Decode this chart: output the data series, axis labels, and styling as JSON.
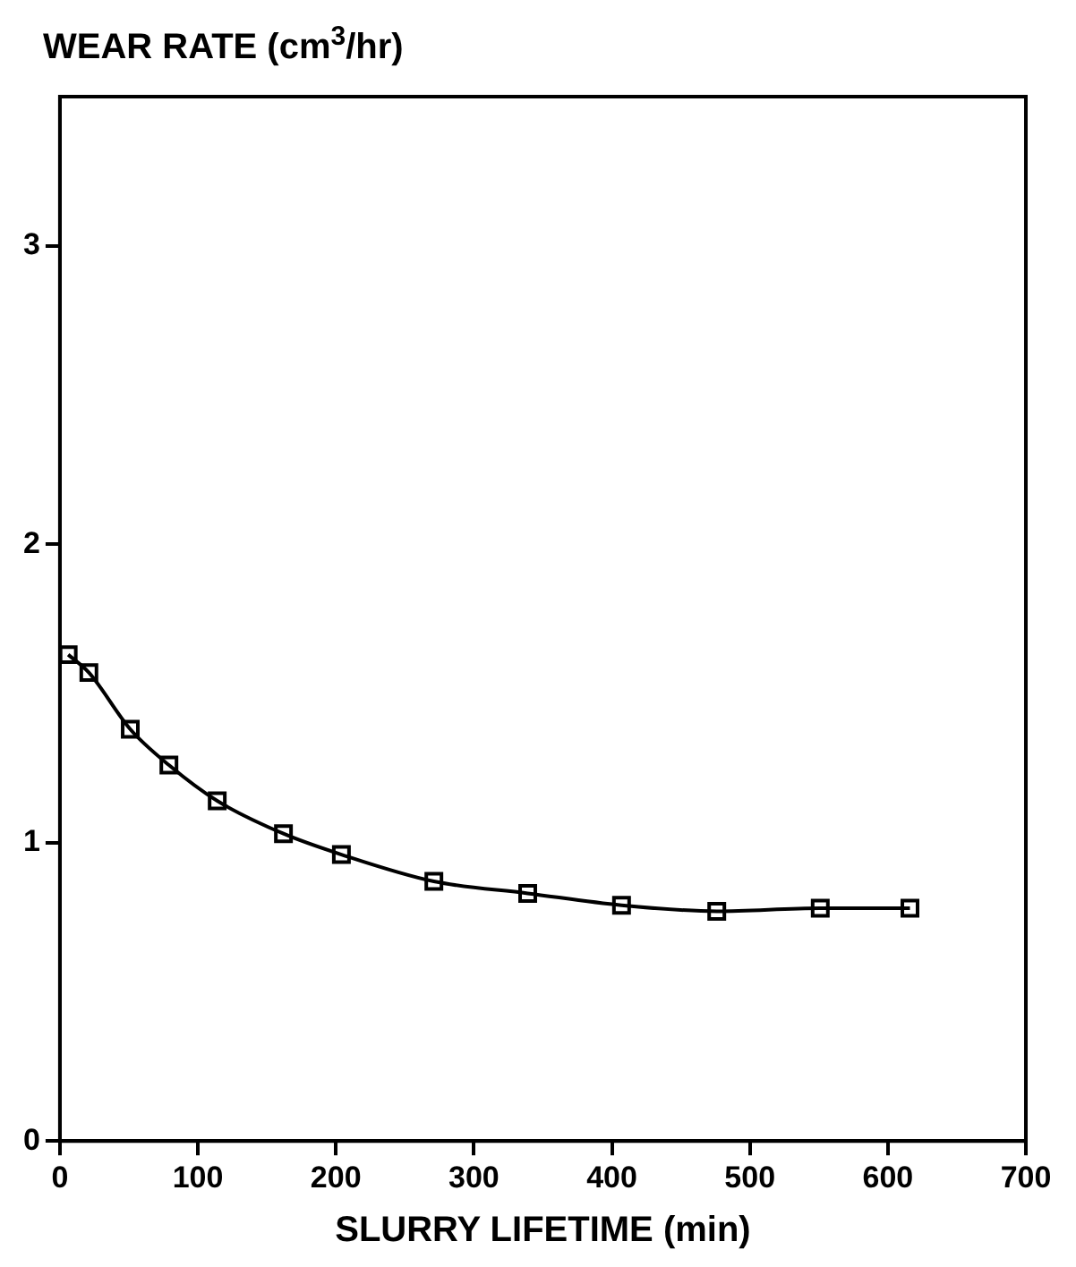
{
  "chart_data": {
    "type": "line",
    "ylabel": "WEAR RATE (cm$^{3}$/hr)",
    "xlabel": "SLURRY LIFETIME (min)",
    "x": [
      6,
      21,
      51,
      79,
      114,
      162,
      204,
      271,
      339,
      407,
      476,
      551,
      616
    ],
    "series": [
      {
        "color": "#000000",
        "values": [
          1.63,
          1.57,
          1.38,
          1.26,
          1.14,
          1.03,
          0.96,
          0.87,
          0.83,
          0.79,
          0.77,
          0.78,
          0.78
        ]
      }
    ],
    "xlim": [
      0,
      700
    ],
    "xticks": [
      0,
      100,
      200,
      300,
      400,
      500,
      600,
      700
    ],
    "ylim": [
      0,
      3.5
    ],
    "yticks": [
      0,
      1,
      2,
      3
    ],
    "grid": false,
    "legend": false,
    "marker": "square",
    "line_style": "solid"
  }
}
